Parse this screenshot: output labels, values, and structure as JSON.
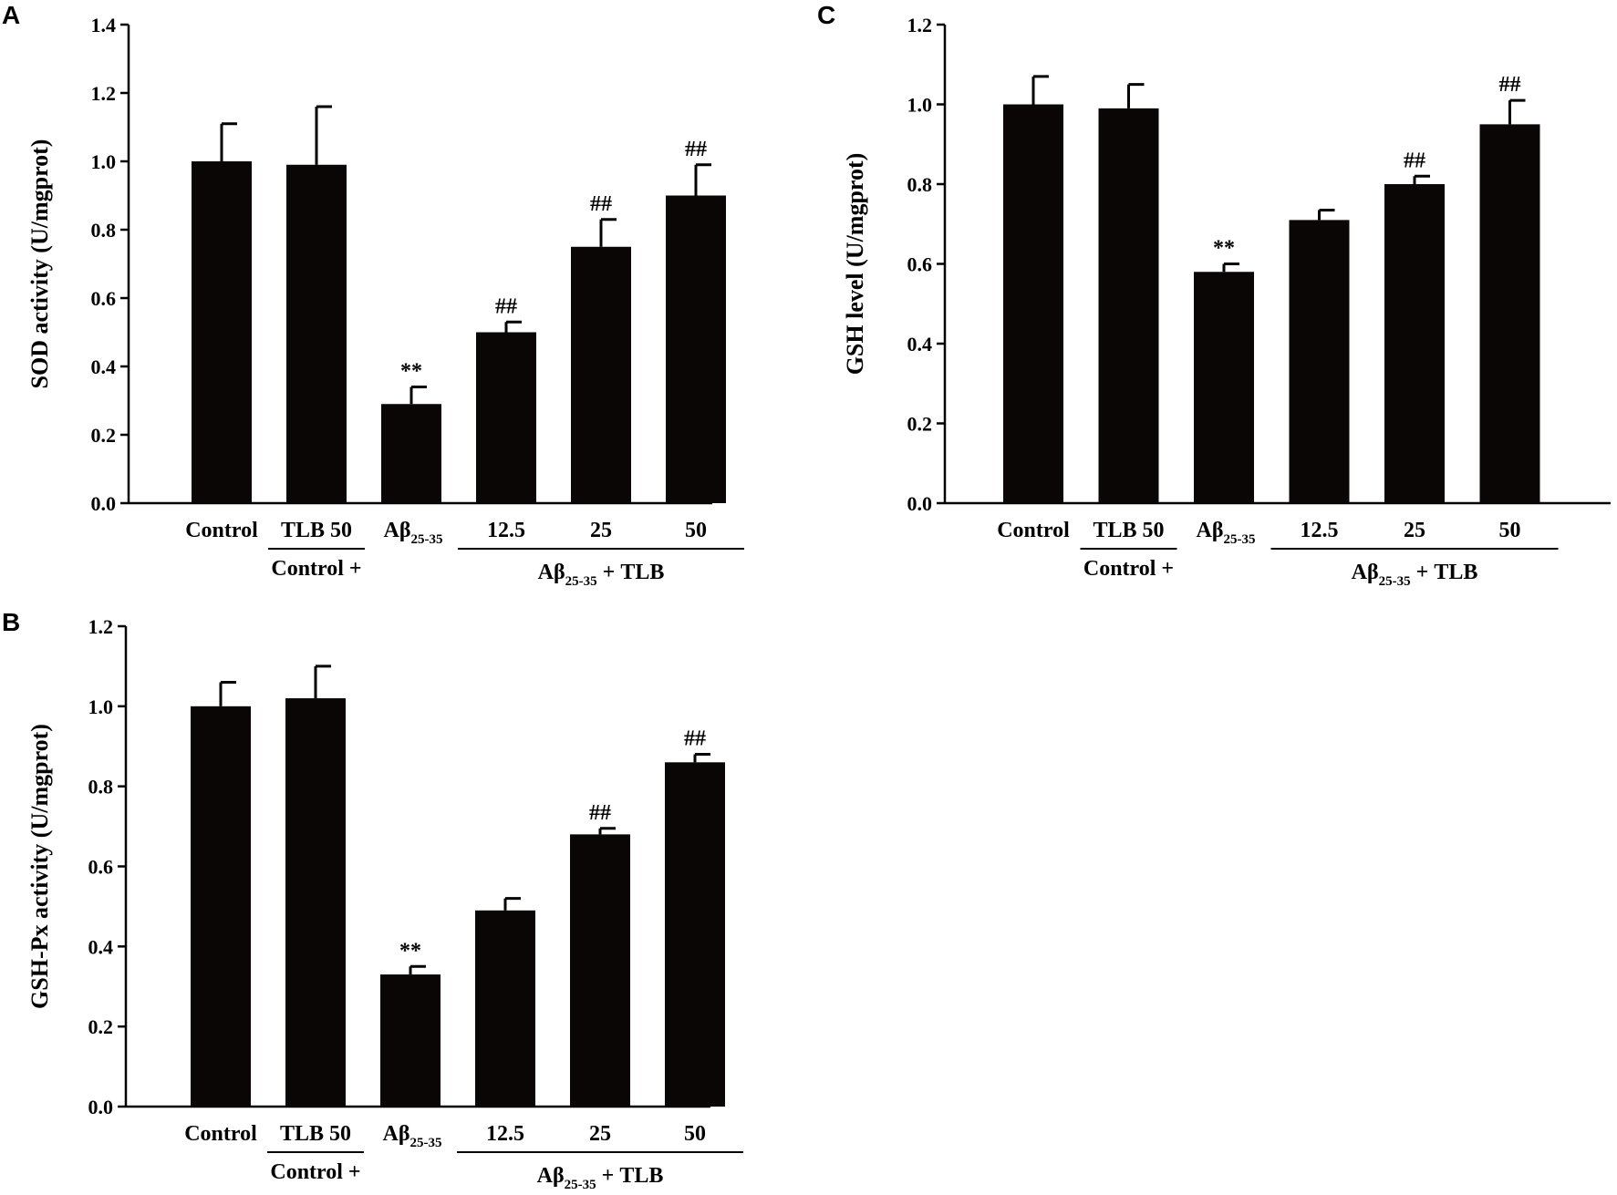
{
  "chart_data": [
    {
      "panel": "A",
      "type": "bar",
      "title": "",
      "ylabel": "SOD activity (U/mgprot)",
      "xlabel": "",
      "ylim": [
        0,
        1.4
      ],
      "yticks": [
        "0.0",
        "0.2",
        "0.4",
        "0.6",
        "0.8",
        "1.0",
        "1.2",
        "1.4"
      ],
      "categories": [
        "Control",
        "TLB 50",
        "Aβ25-35",
        "12.5",
        "25",
        "50"
      ],
      "values": [
        1.0,
        0.99,
        0.29,
        0.5,
        0.75,
        0.9
      ],
      "errors": [
        0.11,
        0.17,
        0.05,
        0.03,
        0.08,
        0.09
      ],
      "annotations": [
        "",
        "",
        "**",
        "##",
        "##",
        "##"
      ],
      "groups": [
        {
          "label": "Control +",
          "from": 1,
          "to": 1
        },
        {
          "label_main": "Aβ",
          "label_sub": "25-35",
          "label_rest": " + TLB",
          "from": 3,
          "to": 5
        }
      ],
      "grid": false,
      "bar_color": "#0a0606"
    },
    {
      "panel": "B",
      "type": "bar",
      "title": "",
      "ylabel": "GSH-Px activity (U/mgprot)",
      "xlabel": "",
      "ylim": [
        0,
        1.2
      ],
      "yticks": [
        "0.0",
        "0.2",
        "0.4",
        "0.6",
        "0.8",
        "1.0",
        "1.2"
      ],
      "categories": [
        "Control",
        "TLB 50",
        "Aβ25-35",
        "12.5",
        "25",
        "50"
      ],
      "values": [
        1.0,
        1.02,
        0.33,
        0.49,
        0.68,
        0.86
      ],
      "errors": [
        0.06,
        0.08,
        0.02,
        0.03,
        0.015,
        0.02
      ],
      "annotations": [
        "",
        "",
        "**",
        "",
        "##",
        "##"
      ],
      "groups": [
        {
          "label": "Control +",
          "from": 1,
          "to": 1
        },
        {
          "label_main": "Aβ",
          "label_sub": "25-35",
          "label_rest": " + TLB",
          "from": 3,
          "to": 5
        }
      ],
      "grid": false,
      "bar_color": "#0a0606"
    },
    {
      "panel": "C",
      "type": "bar",
      "title": "",
      "ylabel": "GSH level (U/mgprot)",
      "xlabel": "",
      "ylim": [
        0,
        1.2
      ],
      "yticks": [
        "0.0",
        "0.2",
        "0.4",
        "0.6",
        "0.8",
        "1.0",
        "1.2"
      ],
      "categories": [
        "Control",
        "TLB 50",
        "Aβ25-35",
        "12.5",
        "25",
        "50"
      ],
      "values": [
        1.0,
        0.99,
        0.58,
        0.71,
        0.8,
        0.95
      ],
      "errors": [
        0.07,
        0.06,
        0.02,
        0.025,
        0.02,
        0.06
      ],
      "annotations": [
        "",
        "",
        "**",
        "",
        "##",
        "##"
      ],
      "groups": [
        {
          "label": "Control +",
          "from": 1,
          "to": 1
        },
        {
          "label_main": "Aβ",
          "label_sub": "25-35",
          "label_rest": " + TLB",
          "from": 3,
          "to": 5
        }
      ],
      "grid": false,
      "bar_color": "#0a0606"
    }
  ]
}
